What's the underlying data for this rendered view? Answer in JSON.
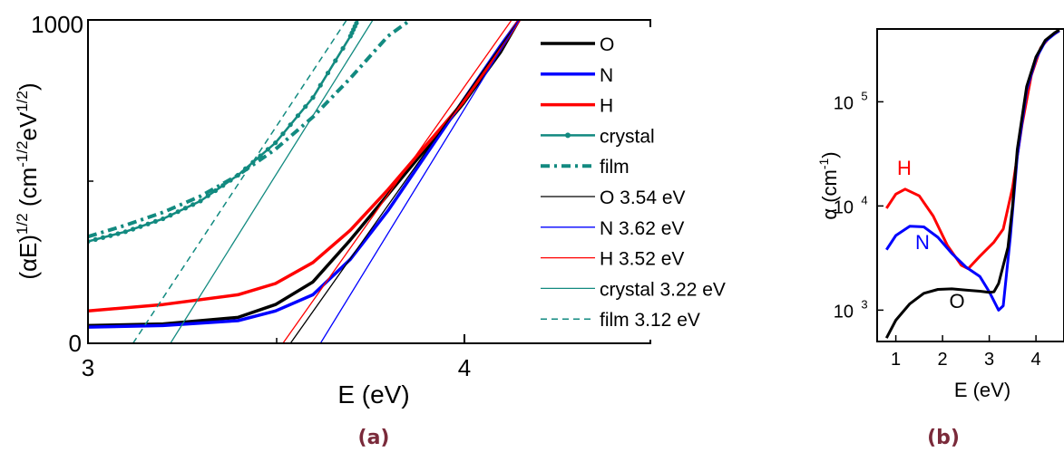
{
  "chart_data": [
    {
      "panel_label": "(a)",
      "type": "line",
      "xlabel": "E (eV)",
      "ylabel_parts": [
        "(αE)",
        "1/2",
        " (cm",
        "-1/2",
        "eV",
        "1/2",
        ")"
      ],
      "xlim": [
        3,
        4.5
      ],
      "ylim": [
        0,
        1000
      ],
      "x_tick_labels": [
        "3",
        "4"
      ],
      "y_tick_labels": [
        "0",
        "1000"
      ],
      "legend_position": "right",
      "colors": {
        "O": "#000000",
        "N": "#0000ff",
        "H": "#ff0000",
        "crystal": "#128a80",
        "film": "#128a80"
      },
      "series": [
        {
          "name": "O",
          "style": "thick",
          "color": "#000000",
          "x": [
            3.0,
            3.2,
            3.4,
            3.5,
            3.6,
            3.7,
            3.8,
            3.9,
            4.0,
            4.1,
            4.15
          ],
          "y": [
            55,
            60,
            80,
            120,
            190,
            320,
            460,
            600,
            740,
            900,
            1000
          ]
        },
        {
          "name": "N",
          "style": "thick",
          "color": "#0000ff",
          "x": [
            3.0,
            3.2,
            3.4,
            3.5,
            3.6,
            3.7,
            3.8,
            3.9,
            4.0,
            4.1,
            4.15
          ],
          "y": [
            50,
            55,
            70,
            100,
            150,
            260,
            410,
            580,
            750,
            920,
            1000
          ]
        },
        {
          "name": "H",
          "style": "thick",
          "color": "#ff0000",
          "x": [
            3.0,
            3.2,
            3.4,
            3.5,
            3.6,
            3.7,
            3.8,
            3.9,
            4.0,
            4.1,
            4.15
          ],
          "y": [
            100,
            120,
            150,
            185,
            250,
            350,
            475,
            610,
            745,
            910,
            1000
          ]
        },
        {
          "name": "crystal",
          "style": "dotted-line",
          "color": "#128a80",
          "x": [
            3.0,
            3.1,
            3.2,
            3.3,
            3.4,
            3.5,
            3.6,
            3.7,
            3.72
          ],
          "y": [
            315,
            345,
            385,
            440,
            520,
            620,
            760,
            950,
            1000
          ]
        },
        {
          "name": "film",
          "style": "dash-dot",
          "color": "#128a80",
          "x": [
            3.0,
            3.1,
            3.2,
            3.3,
            3.4,
            3.5,
            3.6,
            3.7,
            3.8,
            3.86
          ],
          "y": [
            330,
            365,
            405,
            455,
            520,
            600,
            700,
            820,
            950,
            1000
          ]
        },
        {
          "name": "O 3.54 eV",
          "style": "fit",
          "color": "#000000",
          "x": [
            3.54,
            4.15
          ],
          "y": [
            0,
            1000
          ]
        },
        {
          "name": "N 3.62 eV",
          "style": "fit",
          "color": "#0000ff",
          "x": [
            3.62,
            4.15
          ],
          "y": [
            0,
            1000
          ]
        },
        {
          "name": "H 3.52 eV",
          "style": "fit",
          "color": "#ff0000",
          "x": [
            3.52,
            4.13
          ],
          "y": [
            0,
            1000
          ]
        },
        {
          "name": "crystal 3.22 eV",
          "style": "fit",
          "color": "#128a80",
          "x": [
            3.22,
            3.76
          ],
          "y": [
            0,
            1000
          ]
        },
        {
          "name": "film 3.12 eV",
          "style": "fit-dashed",
          "color": "#128a80",
          "x": [
            3.12,
            3.69
          ],
          "y": [
            0,
            1000
          ]
        }
      ]
    },
    {
      "panel_label": "(b)",
      "type": "line",
      "xlabel": "E (eV)",
      "ylabel": "α (cm",
      "ylabel_sup": "-1",
      "ylabel_end": ")",
      "xlim": [
        0.6,
        4.6
      ],
      "ylim": [
        500,
        500000
      ],
      "y_scale": "log",
      "x_tick_labels": [
        "1",
        "2",
        "3",
        "4"
      ],
      "y_tick_labels": [
        {
          "base": "10",
          "exp": "3"
        },
        {
          "base": "10",
          "exp": "4"
        },
        {
          "base": "10",
          "exp": "5"
        }
      ],
      "series": [
        {
          "name": "H",
          "color": "#ff0000",
          "x": [
            0.8,
            1.0,
            1.2,
            1.5,
            1.8,
            2.1,
            2.4,
            2.55,
            2.8,
            3.1,
            3.3,
            3.5,
            3.7,
            3.9,
            4.1,
            4.3,
            4.5
          ],
          "y": [
            9500,
            13000,
            14500,
            12500,
            8000,
            4200,
            2700,
            2500,
            3300,
            4500,
            6000,
            15000,
            60000,
            180000,
            330000,
            420000,
            480000
          ]
        },
        {
          "name": "N",
          "color": "#0000ff",
          "x": [
            0.8,
            1.0,
            1.3,
            1.6,
            1.9,
            2.2,
            2.5,
            2.8,
            3.0,
            3.2,
            3.3,
            3.45,
            3.6,
            3.8,
            4.0,
            4.2,
            4.4,
            4.5
          ],
          "y": [
            3800,
            5200,
            6400,
            6300,
            5000,
            3500,
            2600,
            2100,
            1500,
            1000,
            1100,
            5000,
            30000,
            130000,
            260000,
            380000,
            450000,
            480000
          ]
        },
        {
          "name": "O",
          "color": "#000000",
          "x": [
            0.8,
            1.0,
            1.3,
            1.6,
            1.9,
            2.2,
            2.5,
            2.8,
            3.0,
            3.1,
            3.2,
            3.4,
            3.5,
            3.6,
            3.8,
            4.0,
            4.2,
            4.4,
            4.5
          ],
          "y": [
            540,
            800,
            1150,
            1450,
            1580,
            1600,
            1560,
            1520,
            1480,
            1500,
            1800,
            4000,
            10000,
            35000,
            140000,
            270000,
            390000,
            460000,
            490000
          ]
        }
      ]
    }
  ]
}
